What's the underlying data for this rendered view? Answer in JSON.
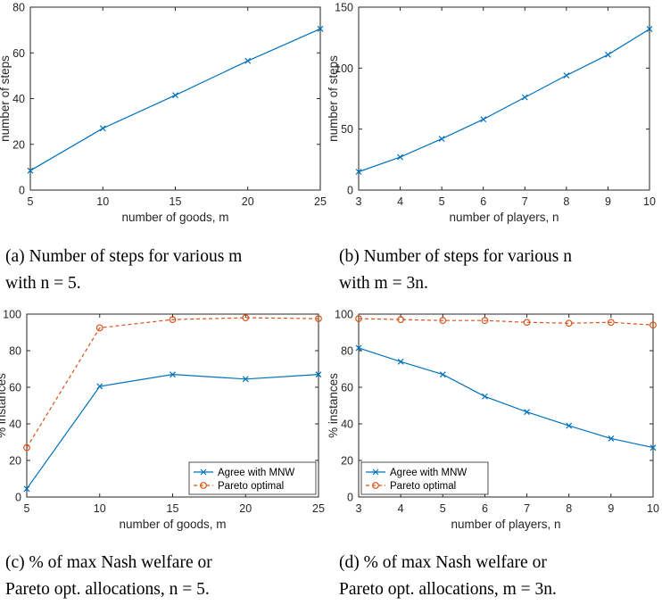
{
  "colors": {
    "blue": "#0072BD",
    "orange": "#D95319"
  },
  "chart_data": [
    {
      "type": "line",
      "id": "a",
      "x": [
        5,
        10,
        15,
        20,
        25
      ],
      "series": [
        {
          "values": [
            8.5,
            27,
            41.5,
            56.5,
            70.5
          ],
          "color": "#0072BD",
          "marker": "x",
          "dash": false
        }
      ],
      "xlabel": "number of goods, m",
      "ylabel": "number of steps",
      "xlim": [
        5,
        25
      ],
      "ylim": [
        0,
        80
      ],
      "xticks": [
        5,
        10,
        15,
        20,
        25
      ],
      "yticks": [
        0,
        20,
        40,
        60,
        80
      ],
      "legend": null,
      "caption": [
        "(a) Number of steps for various m",
        "with n = 5."
      ]
    },
    {
      "type": "line",
      "id": "b",
      "x": [
        3,
        4,
        5,
        6,
        7,
        8,
        9,
        10
      ],
      "series": [
        {
          "values": [
            15,
            27,
            42,
            58,
            76,
            94,
            111,
            132
          ],
          "color": "#0072BD",
          "marker": "x",
          "dash": false
        }
      ],
      "xlabel": "number of players, n",
      "ylabel": "number of steps",
      "xlim": [
        3,
        10
      ],
      "ylim": [
        0,
        150
      ],
      "xticks": [
        3,
        4,
        5,
        6,
        7,
        8,
        9,
        10
      ],
      "yticks": [
        0,
        50,
        100,
        150
      ],
      "legend": null,
      "caption": [
        "(b) Number of steps for various n",
        "with m = 3n."
      ]
    },
    {
      "type": "line",
      "id": "c",
      "x": [
        5,
        10,
        15,
        20,
        25
      ],
      "series": [
        {
          "name": "Agree with MNW",
          "values": [
            4.5,
            60.5,
            67,
            64.5,
            67
          ],
          "color": "#0072BD",
          "marker": "x",
          "dash": false
        },
        {
          "name": "Pareto optimal",
          "values": [
            27,
            92.5,
            97,
            98,
            97.5
          ],
          "color": "#D95319",
          "marker": "o",
          "dash": true
        }
      ],
      "xlabel": "number of goods, m",
      "ylabel": "% instances",
      "xlim": [
        5,
        25
      ],
      "ylim": [
        0,
        100
      ],
      "xticks": [
        5,
        10,
        15,
        20,
        25
      ],
      "yticks": [
        0,
        20,
        40,
        60,
        80,
        100
      ],
      "legend": "bottom-right",
      "caption": [
        "(c) % of max Nash welfare or",
        "Pareto opt. allocations, n = 5."
      ]
    },
    {
      "type": "line",
      "id": "d",
      "x": [
        3,
        4,
        5,
        6,
        7,
        8,
        9,
        10
      ],
      "series": [
        {
          "name": "Agree with MNW",
          "values": [
            81.5,
            74,
            67,
            55,
            46.5,
            39,
            32,
            27
          ],
          "color": "#0072BD",
          "marker": "x",
          "dash": false
        },
        {
          "name": "Pareto optimal",
          "values": [
            97.5,
            97,
            96.5,
            96.5,
            95.5,
            95,
            95.5,
            94
          ],
          "color": "#D95319",
          "marker": "o",
          "dash": true
        }
      ],
      "xlabel": "number of players, n",
      "ylabel": "% instances",
      "xlim": [
        3,
        10
      ],
      "ylim": [
        0,
        100
      ],
      "xticks": [
        3,
        4,
        5,
        6,
        7,
        8,
        9,
        10
      ],
      "yticks": [
        0,
        20,
        40,
        60,
        80,
        100
      ],
      "legend": "bottom-left",
      "caption": [
        "(d) % of max Nash welfare or",
        "Pareto opt. allocations, m = 3n."
      ]
    }
  ]
}
